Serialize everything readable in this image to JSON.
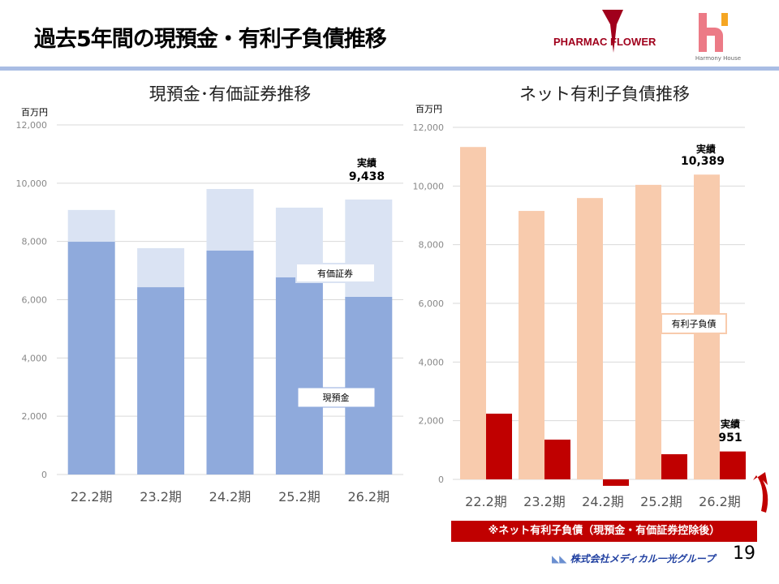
{
  "header": {
    "title": "過去5年間の現預金・有利子負債推移",
    "logo1": "PHARMAC FLOWER",
    "logo2": "Harmony House"
  },
  "note": "※ネット有利子負債（現預金・有価証券控除後）",
  "footer": {
    "company": "株式会社メディカル一光グループ",
    "page": "19"
  },
  "colors": {
    "cash": "#8faadc",
    "securities": "#dae3f3",
    "debt": "#f8cbad",
    "net": "#c00000",
    "rule": "#a9bde4"
  },
  "chart_data": [
    {
      "type": "bar",
      "stacked": true,
      "title": "現預金･有価証券推移",
      "ylabel": "百万円",
      "ylim": [
        0,
        12000
      ],
      "yticks": [
        "0",
        "2,000",
        "4,000",
        "6,000",
        "8,000",
        "10,000",
        "12,000"
      ],
      "categories": [
        "22.2期",
        "23.2期",
        "24.2期",
        "25.2期",
        "26.2期"
      ],
      "series": [
        {
          "name": "現預金",
          "values": [
            7990,
            6430,
            7690,
            6770,
            6100
          ]
        },
        {
          "name": "有価証券",
          "values": [
            1090,
            1340,
            2110,
            2390,
            3338
          ]
        }
      ],
      "annotation": {
        "label": "実績",
        "value": "9,438"
      },
      "grid": true
    },
    {
      "type": "bar",
      "title": "ネット有利子負債推移",
      "ylabel": "百万円",
      "ylim": [
        0,
        12000
      ],
      "yticks": [
        "0",
        "2,000",
        "4,000",
        "6,000",
        "8,000",
        "10,000",
        "12,000"
      ],
      "categories": [
        "22.2期",
        "23.2期",
        "24.2期",
        "25.2期",
        "26.2期"
      ],
      "series": [
        {
          "name": "有利子負債",
          "values": [
            11330,
            9150,
            9590,
            10040,
            10389
          ]
        },
        {
          "name": "ネット有利子負債",
          "values": [
            2240,
            1355,
            -220,
            857,
            951
          ]
        }
      ],
      "annotations": [
        {
          "label": "実績",
          "value": "10,389"
        },
        {
          "label": "実績",
          "value": "951"
        }
      ],
      "grid": true
    }
  ]
}
